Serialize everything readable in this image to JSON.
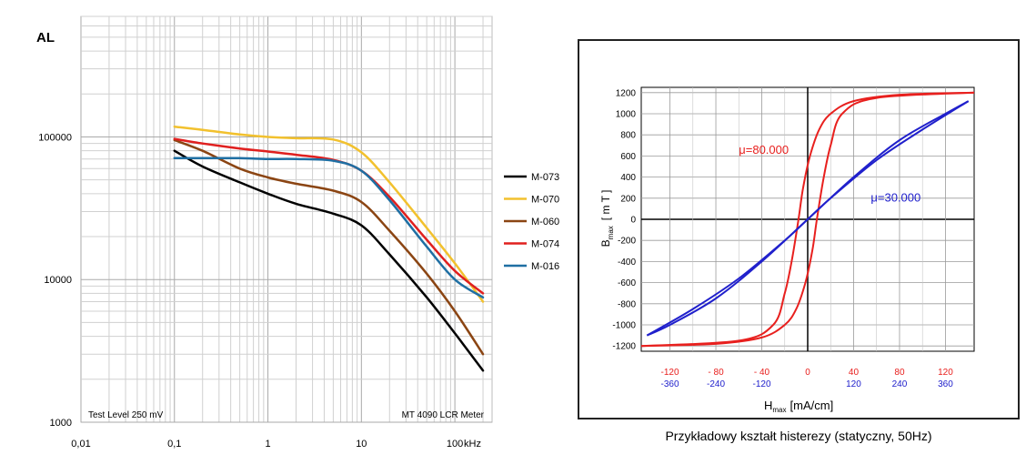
{
  "chart_data": [
    {
      "type": "line",
      "title": "",
      "ylabel": "AL",
      "xlabel": "kHz",
      "xscale": "log",
      "yscale": "log",
      "xlim": [
        0.01,
        250
      ],
      "ylim": [
        1000,
        700000
      ],
      "grid": true,
      "legend_position": "right",
      "x_tick_labels": [
        "0,01",
        "0,1",
        "1",
        "10",
        "100"
      ],
      "x_tick_values": [
        0.01,
        0.1,
        1,
        10,
        100
      ],
      "y_tick_labels": [
        "1000",
        "10000",
        "100000"
      ],
      "y_tick_values": [
        1000,
        10000,
        100000
      ],
      "annotations": {
        "bottom_left": "Test Level 250 mV",
        "bottom_right": "MT 4090 LCR Meter"
      },
      "series": [
        {
          "name": "M-073",
          "color": "#000000",
          "points": [
            [
              0.1,
              80000
            ],
            [
              0.2,
              62000
            ],
            [
              0.5,
              48000
            ],
            [
              1,
              40000
            ],
            [
              2,
              34000
            ],
            [
              5,
              29000
            ],
            [
              10,
              24000
            ],
            [
              20,
              15000
            ],
            [
              50,
              7500
            ],
            [
              100,
              4200
            ],
            [
              200,
              2300
            ]
          ]
        },
        {
          "name": "M-070",
          "color": "#f2c12e",
          "points": [
            [
              0.1,
              118000
            ],
            [
              0.2,
              112000
            ],
            [
              0.5,
              104000
            ],
            [
              1,
              100000
            ],
            [
              2,
              98000
            ],
            [
              5,
              96000
            ],
            [
              10,
              78000
            ],
            [
              20,
              48000
            ],
            [
              50,
              23000
            ],
            [
              100,
              13000
            ],
            [
              200,
              7000
            ]
          ]
        },
        {
          "name": "M-060",
          "color": "#8b4513",
          "points": [
            [
              0.1,
              95000
            ],
            [
              0.2,
              80000
            ],
            [
              0.5,
              60000
            ],
            [
              1,
              52000
            ],
            [
              2,
              47000
            ],
            [
              5,
              42000
            ],
            [
              10,
              35000
            ],
            [
              20,
              22000
            ],
            [
              50,
              11000
            ],
            [
              100,
              6000
            ],
            [
              200,
              3000
            ]
          ]
        },
        {
          "name": "M-074",
          "color": "#e0201f",
          "points": [
            [
              0.1,
              97000
            ],
            [
              0.2,
              90000
            ],
            [
              0.5,
              83000
            ],
            [
              1,
              79000
            ],
            [
              2,
              75000
            ],
            [
              5,
              69000
            ],
            [
              10,
              58000
            ],
            [
              20,
              38000
            ],
            [
              50,
              19000
            ],
            [
              100,
              11500
            ],
            [
              200,
              8000
            ]
          ]
        },
        {
          "name": "M-016",
          "color": "#1f6fa3",
          "points": [
            [
              0.1,
              71000
            ],
            [
              0.2,
              71000
            ],
            [
              0.5,
              71000
            ],
            [
              1,
              70000
            ],
            [
              2,
              70000
            ],
            [
              5,
              68000
            ],
            [
              10,
              58000
            ],
            [
              20,
              36000
            ],
            [
              50,
              17000
            ],
            [
              100,
              10000
            ],
            [
              200,
              7500
            ]
          ]
        }
      ]
    },
    {
      "type": "line",
      "title": "",
      "caption": "Przykładowy kształt histerezy (statyczny, 50Hz)",
      "ylabel_main": "B",
      "ylabel_sub": "max",
      "ylabel_unit": "[ m T ]",
      "xlabel_main": "H",
      "xlabel_sub": "max",
      "xlabel_unit": "[mA/cm]",
      "xlim": [
        -145,
        145
      ],
      "ylim": [
        -1250,
        1250
      ],
      "grid": true,
      "y_tick_values": [
        1200,
        1000,
        800,
        600,
        400,
        200,
        0,
        -200,
        -400,
        -600,
        -800,
        -1000,
        -1200
      ],
      "y_tick_labels": [
        "1200",
        "1000",
        "800",
        "600",
        "400",
        "200",
        "0",
        "-200",
        "-400",
        "-600",
        "-800",
        "-1000",
        "-1200"
      ],
      "x_tick_values": [
        -120,
        -80,
        -40,
        0,
        40,
        80,
        120
      ],
      "x_tick_labels_red": [
        "-120",
        "- 80",
        "- 40",
        "0",
        "40",
        "80",
        "120"
      ],
      "x_tick_labels_blue": [
        "-360",
        "-240",
        "-120",
        "",
        "120",
        "240",
        "360"
      ],
      "series": [
        {
          "name": "μ=80.000",
          "color": "#e8201e",
          "label_x": -60,
          "label_y": 620,
          "branch_upper": [
            [
              -145,
              -1200
            ],
            [
              -60,
              -1150
            ],
            [
              -30,
              -1000
            ],
            [
              -20,
              -700
            ],
            [
              -14,
              -400
            ],
            [
              -8,
              0
            ],
            [
              -4,
              300
            ],
            [
              2,
              600
            ],
            [
              10,
              850
            ],
            [
              20,
              1000
            ],
            [
              40,
              1120
            ],
            [
              80,
              1180
            ],
            [
              145,
              1200
            ]
          ],
          "branch_lower": [
            [
              -145,
              -1200
            ],
            [
              -80,
              -1180
            ],
            [
              -40,
              -1120
            ],
            [
              -20,
              -1000
            ],
            [
              -10,
              -850
            ],
            [
              -2,
              -600
            ],
            [
              4,
              -300
            ],
            [
              8,
              0
            ],
            [
              14,
              400
            ],
            [
              20,
              700
            ],
            [
              30,
              1000
            ],
            [
              60,
              1150
            ],
            [
              145,
              1200
            ]
          ]
        },
        {
          "name": "μ=30.000",
          "color": "#2020cc",
          "label_x": 55,
          "label_y": 170,
          "branch_upper": [
            [
              -140,
              -1100
            ],
            [
              -100,
              -850
            ],
            [
              -60,
              -560
            ],
            [
              -20,
              -200
            ],
            [
              0,
              0
            ],
            [
              40,
              400
            ],
            [
              80,
              750
            ],
            [
              120,
              1000
            ],
            [
              140,
              1120
            ]
          ],
          "branch_lower": [
            [
              -140,
              -1100
            ],
            [
              -120,
              -1000
            ],
            [
              -80,
              -750
            ],
            [
              -40,
              -400
            ],
            [
              0,
              0
            ],
            [
              20,
              200
            ],
            [
              60,
              560
            ],
            [
              100,
              850
            ],
            [
              140,
              1120
            ]
          ]
        }
      ]
    }
  ]
}
